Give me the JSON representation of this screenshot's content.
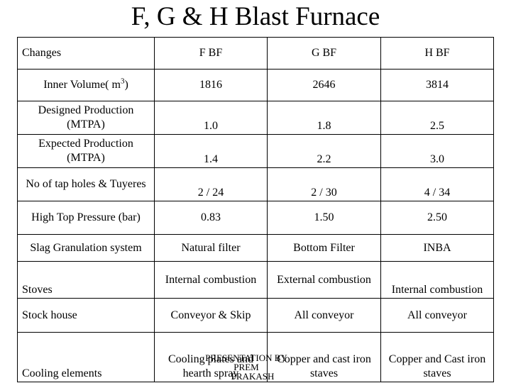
{
  "title": "F, G & H Blast Furnace",
  "table": {
    "header": [
      "Changes",
      "F BF",
      "G BF",
      "H BF"
    ],
    "rows": [
      {
        "label": "Inner Volume( m",
        "label_sup": "3",
        "label_suffix": ")",
        "values": [
          "1816",
          "2646",
          "3814"
        ]
      },
      {
        "label": "Designed Production (MTPA)",
        "values": [
          "1.0",
          "1.8",
          "2.5"
        ]
      },
      {
        "label": "Expected Production (MTPA)",
        "values": [
          "1.4",
          "2.2",
          "3.0"
        ]
      },
      {
        "label": "No of tap holes & Tuyeres",
        "values": [
          "2 / 24",
          "2 / 30",
          "4 / 34"
        ]
      },
      {
        "label": "High Top Pressure (bar)",
        "values": [
          "0.83",
          "1.50",
          "2.50"
        ]
      },
      {
        "label": "Slag Granulation system",
        "values": [
          "Natural filter",
          "Bottom Filter",
          "INBA"
        ]
      },
      {
        "label": "Stoves",
        "values": [
          "Internal combustion",
          "External combustion",
          "Internal combustion"
        ]
      },
      {
        "label": "Stock house",
        "values": [
          "Conveyor & Skip",
          "All conveyor",
          "All conveyor"
        ]
      },
      {
        "label": "Cooling elements",
        "values": [
          "Cooling plates and hearth spray",
          "Copper and cast iron staves",
          "Copper and Cast iron staves"
        ]
      }
    ]
  },
  "footer": {
    "line1": "PRESENTATION BY PREM",
    "line2": "PRAKASH"
  }
}
